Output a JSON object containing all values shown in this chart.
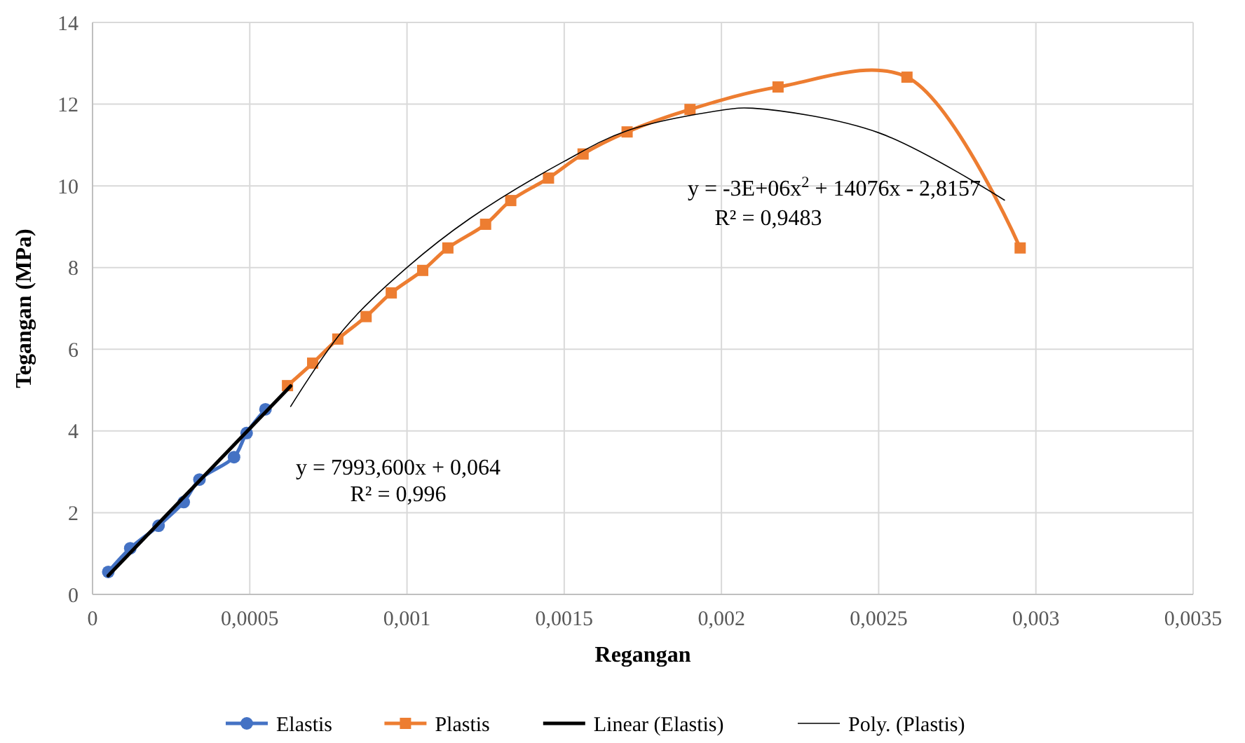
{
  "chart_data": {
    "type": "line",
    "xlabel": "Regangan",
    "ylabel": "Tegangan (MPa)",
    "xlim": [
      0,
      0.0035
    ],
    "xticks": [
      0,
      {
        "value": 0.0005,
        "label": "0,0005"
      },
      {
        "value": 0.001,
        "label": "0,001"
      },
      {
        "value": 0.0015,
        "label": "0,0015"
      },
      {
        "value": 0.002,
        "label": "0,002"
      },
      {
        "value": 0.0025,
        "label": "0,0025"
      },
      {
        "value": 0.003,
        "label": "0,003"
      },
      {
        "value": 0.0035,
        "label": "0,0035"
      }
    ],
    "ylim": [
      0,
      14
    ],
    "yticks": [
      0,
      2,
      4,
      6,
      8,
      10,
      12,
      14
    ],
    "grid": true,
    "legend": "bottom",
    "series": [
      {
        "name": "Elastis",
        "color": "#4472c4",
        "marker": "circle",
        "x": [
          5e-05,
          0.00012,
          0.00021,
          0.00029,
          0.00034,
          0.00045,
          0.00049,
          0.00055
        ],
        "values": [
          0.55,
          1.13,
          1.68,
          2.26,
          2.81,
          3.36,
          3.95,
          4.53
        ]
      },
      {
        "name": "Plastis",
        "color": "#ed7d31",
        "marker": "square",
        "x": [
          0.00062,
          0.0007,
          0.00078,
          0.00087,
          0.00095,
          0.00105,
          0.00113,
          0.00125,
          0.00133,
          0.00145,
          0.00156,
          0.0017,
          0.0019,
          0.00218,
          0.00259,
          0.00295
        ],
        "values": [
          5.11,
          5.66,
          6.25,
          6.8,
          7.38,
          7.93,
          8.48,
          9.06,
          9.64,
          10.19,
          10.78,
          11.32,
          11.87,
          12.42,
          12.66,
          8.48
        ]
      },
      {
        "name": "Linear (Elastis)",
        "color": "#000000",
        "marker": "none",
        "x": [
          5e-05,
          0.00063
        ],
        "values": [
          0.46,
          5.1
        ]
      },
      {
        "name": "Poly. (Plastis)",
        "color": "#000000",
        "marker": "none",
        "x": [
          0.00063,
          0.0008,
          0.001,
          0.0012,
          0.0015,
          0.0017,
          0.002,
          0.0021,
          0.0025,
          0.0029
        ],
        "values": [
          4.6,
          6.5,
          8.0,
          9.2,
          10.6,
          11.35,
          11.85,
          11.9,
          11.3,
          9.65
        ]
      }
    ],
    "annotations": [
      "y = 7993,600x + 0,064",
      "R² = 0,996",
      "y = -3E+06x$^{2}$ + 14076x - 2,8157",
      "R² = 0,9483"
    ]
  }
}
